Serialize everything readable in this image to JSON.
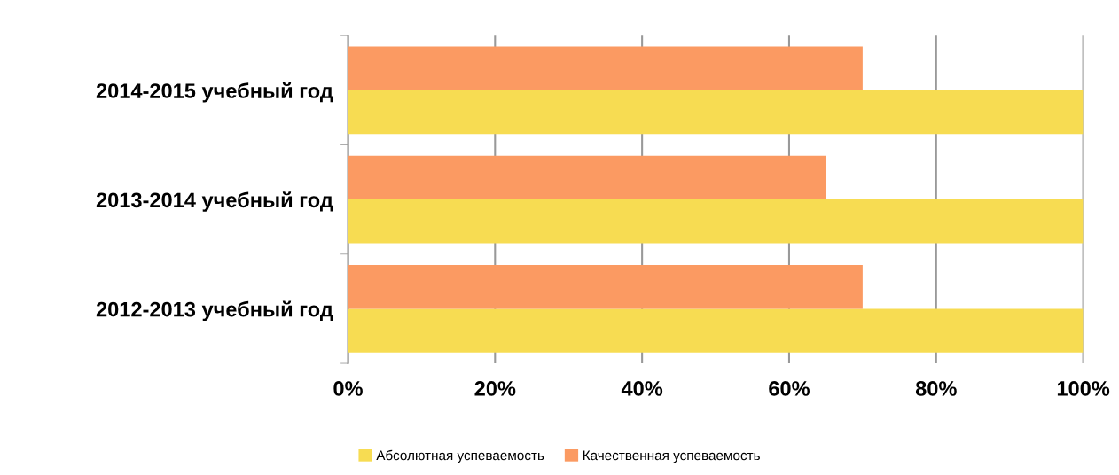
{
  "chart_data": {
    "type": "bar",
    "orientation": "horizontal",
    "categories": [
      "2014-2015 учебный год",
      "2013-2014 учебный год",
      "2012-2013 учебный год"
    ],
    "series": [
      {
        "name": "Абсолютная успеваемость",
        "color": "#f7dc52",
        "values": [
          100,
          100,
          100
        ]
      },
      {
        "name": "Качественная успеваемость",
        "color": "#fb9a62",
        "values": [
          70,
          65,
          70
        ]
      }
    ],
    "xlim": [
      0,
      100
    ],
    "xticks": [
      {
        "value": 0,
        "label": "0%"
      },
      {
        "value": 20,
        "label": "20%"
      },
      {
        "value": 40,
        "label": "40%"
      },
      {
        "value": 60,
        "label": "60%"
      },
      {
        "value": 80,
        "label": "80%"
      },
      {
        "value": 100,
        "label": "100%"
      }
    ],
    "grid": "x",
    "legend": "bottom"
  }
}
